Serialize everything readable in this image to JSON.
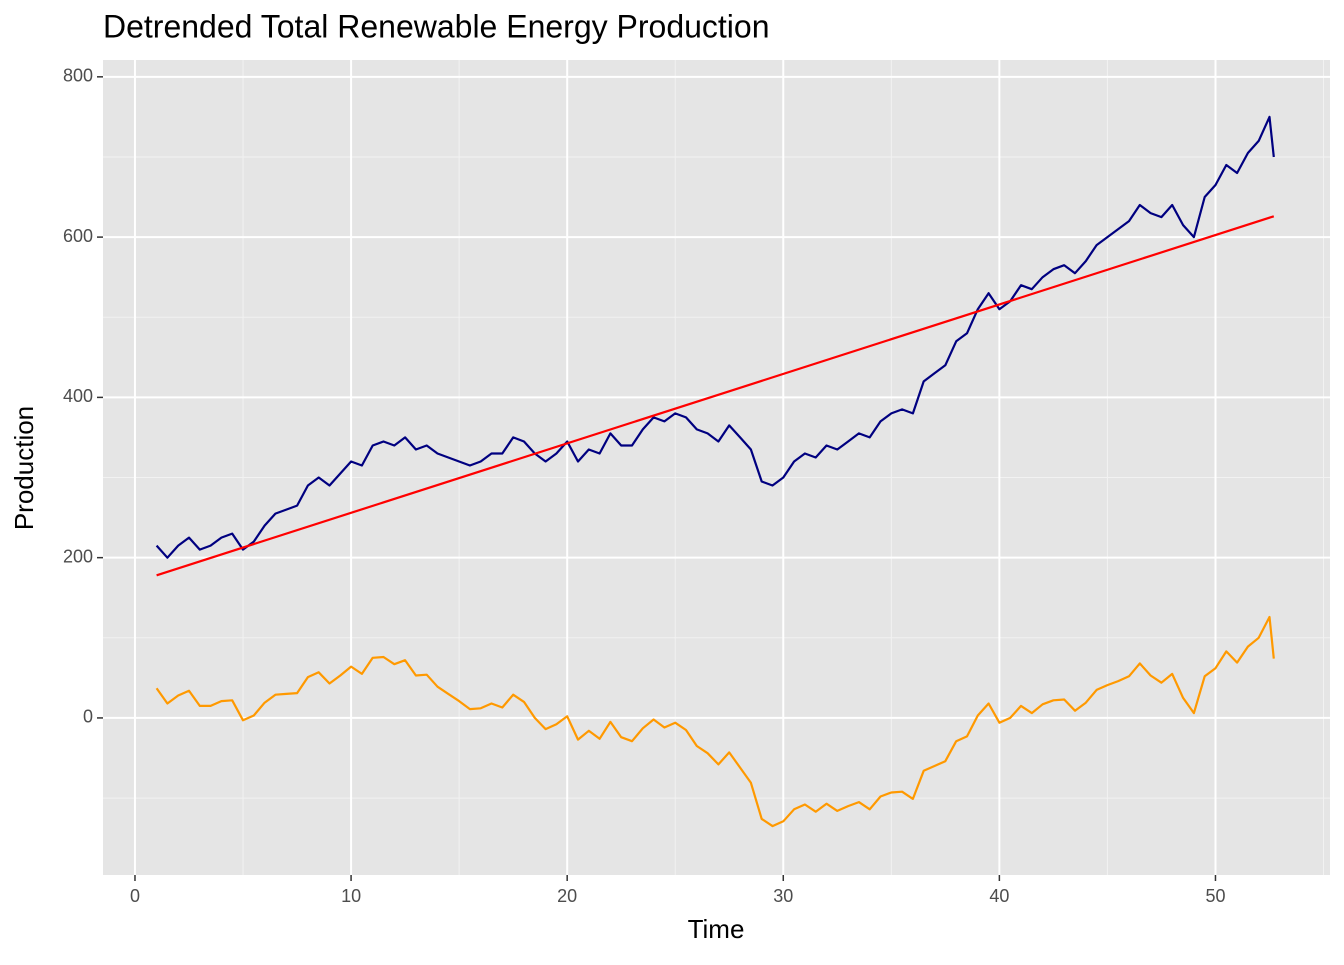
{
  "chart_data": {
    "type": "line",
    "title": "Detrended Total Renewable Energy Production",
    "x_label": "Time",
    "y_label": "Production",
    "xlim": [
      -1.48,
      55.3
    ],
    "ylim": [
      -196,
      821
    ],
    "xticks": [
      0,
      10,
      20,
      30,
      40,
      50
    ],
    "yticks": [
      0,
      200,
      400,
      600,
      800
    ],
    "xminorticks": [
      5,
      15,
      25,
      35,
      45,
      55
    ],
    "yminorticks": [
      -100,
      100,
      300,
      500,
      700
    ],
    "grid": true,
    "x": [
      1,
      1.5,
      2,
      2.5,
      3,
      3.5,
      4,
      4.5,
      5,
      5.5,
      6,
      6.5,
      7,
      7.5,
      8,
      8.5,
      9,
      9.5,
      10,
      10.5,
      11,
      11.5,
      12,
      12.5,
      13,
      13.5,
      14,
      14.5,
      15,
      15.5,
      16,
      16.5,
      17,
      17.5,
      18,
      18.5,
      19,
      19.5,
      20,
      20.5,
      21,
      21.5,
      22,
      22.5,
      23,
      23.5,
      24,
      24.5,
      25,
      25.5,
      26,
      26.5,
      27,
      27.5,
      28,
      28.5,
      29,
      29.5,
      30,
      30.5,
      31,
      31.5,
      32,
      32.5,
      33,
      33.5,
      34,
      34.5,
      35,
      35.5,
      36,
      36.5,
      37,
      37.5,
      38,
      38.5,
      39,
      39.5,
      40,
      40.5,
      41,
      41.5,
      42,
      42.5,
      43,
      43.5,
      44,
      44.5,
      45,
      45.5,
      46,
      46.5,
      47,
      47.5,
      48,
      48.5,
      49,
      49.5,
      50,
      50.5,
      51,
      51.5,
      52,
      52.5,
      52.7
    ],
    "series": [
      {
        "color": "#000080",
        "values": [
          215,
          200,
          215,
          225,
          210,
          215,
          225,
          230,
          210,
          220,
          240,
          255,
          260,
          265,
          290,
          300,
          290,
          305,
          320,
          315,
          340,
          345,
          340,
          350,
          335,
          340,
          330,
          325,
          320,
          315,
          320,
          330,
          330,
          350,
          345,
          330,
          320,
          330,
          345,
          320,
          335,
          330,
          355,
          340,
          340,
          360,
          375,
          370,
          380,
          375,
          360,
          355,
          345,
          365,
          350,
          335,
          295,
          290,
          300,
          320,
          330,
          325,
          340,
          335,
          345,
          355,
          350,
          370,
          380,
          385,
          380,
          420,
          430,
          440,
          470,
          480,
          510,
          530,
          510,
          520,
          540,
          535,
          550,
          560,
          565,
          555,
          570,
          590,
          600,
          610,
          620,
          640,
          630,
          625,
          640,
          615,
          600,
          650,
          665,
          690,
          680,
          705,
          720,
          750,
          700
        ]
      },
      {
        "color": "#ff9900",
        "values": [
          37,
          18,
          28,
          34,
          15,
          15,
          21,
          22,
          -3,
          3,
          19,
          29,
          30,
          31,
          51,
          57,
          43,
          53,
          64,
          55,
          75,
          76,
          67,
          72,
          53,
          54,
          39,
          30,
          21,
          11,
          12,
          18,
          13,
          29,
          20,
          0,
          -14,
          -8,
          2,
          -27,
          -16,
          -26,
          -5,
          -24,
          -29,
          -13,
          -2,
          -12,
          -6,
          -15,
          -35,
          -44,
          -58,
          -43,
          -62,
          -81,
          -126,
          -135,
          -129,
          -114,
          -108,
          -117,
          -107,
          -116,
          -110,
          -105,
          -114,
          -98,
          -93,
          -92,
          -101,
          -66,
          -60,
          -54,
          -29,
          -23,
          3,
          18,
          -6,
          0,
          15,
          6,
          17,
          22,
          23,
          9,
          19,
          35,
          41,
          46,
          52,
          68,
          53,
          44,
          55,
          25,
          6,
          52,
          62,
          83,
          69,
          89,
          100,
          126,
          74
        ]
      },
      {
        "color": "#ff0000",
        "x": [
          1,
          52.7
        ],
        "values": [
          178,
          626
        ]
      }
    ]
  }
}
